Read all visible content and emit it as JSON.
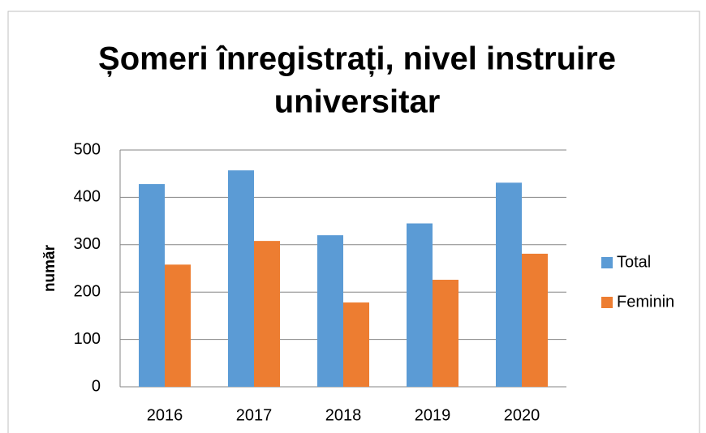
{
  "chart_data": {
    "type": "bar",
    "title": "Șomeri înregistrați, nivel instruire universitar",
    "title_lines": [
      "Șomeri înregistrați, nivel instruire",
      "universitar"
    ],
    "y_label": "număr",
    "categories": [
      "2016",
      "2017",
      "2018",
      "2019",
      "2020"
    ],
    "series": [
      {
        "name": "Total",
        "color": "#5b9bd5",
        "values": [
          428,
          457,
          320,
          345,
          431
        ]
      },
      {
        "name": "Feminin",
        "color": "#ed7d31",
        "values": [
          258,
          308,
          178,
          226,
          281
        ]
      }
    ],
    "ylim": [
      0,
      500
    ],
    "yticks": [
      0,
      100,
      200,
      300,
      400,
      500
    ],
    "grid": true,
    "legend": "right"
  }
}
